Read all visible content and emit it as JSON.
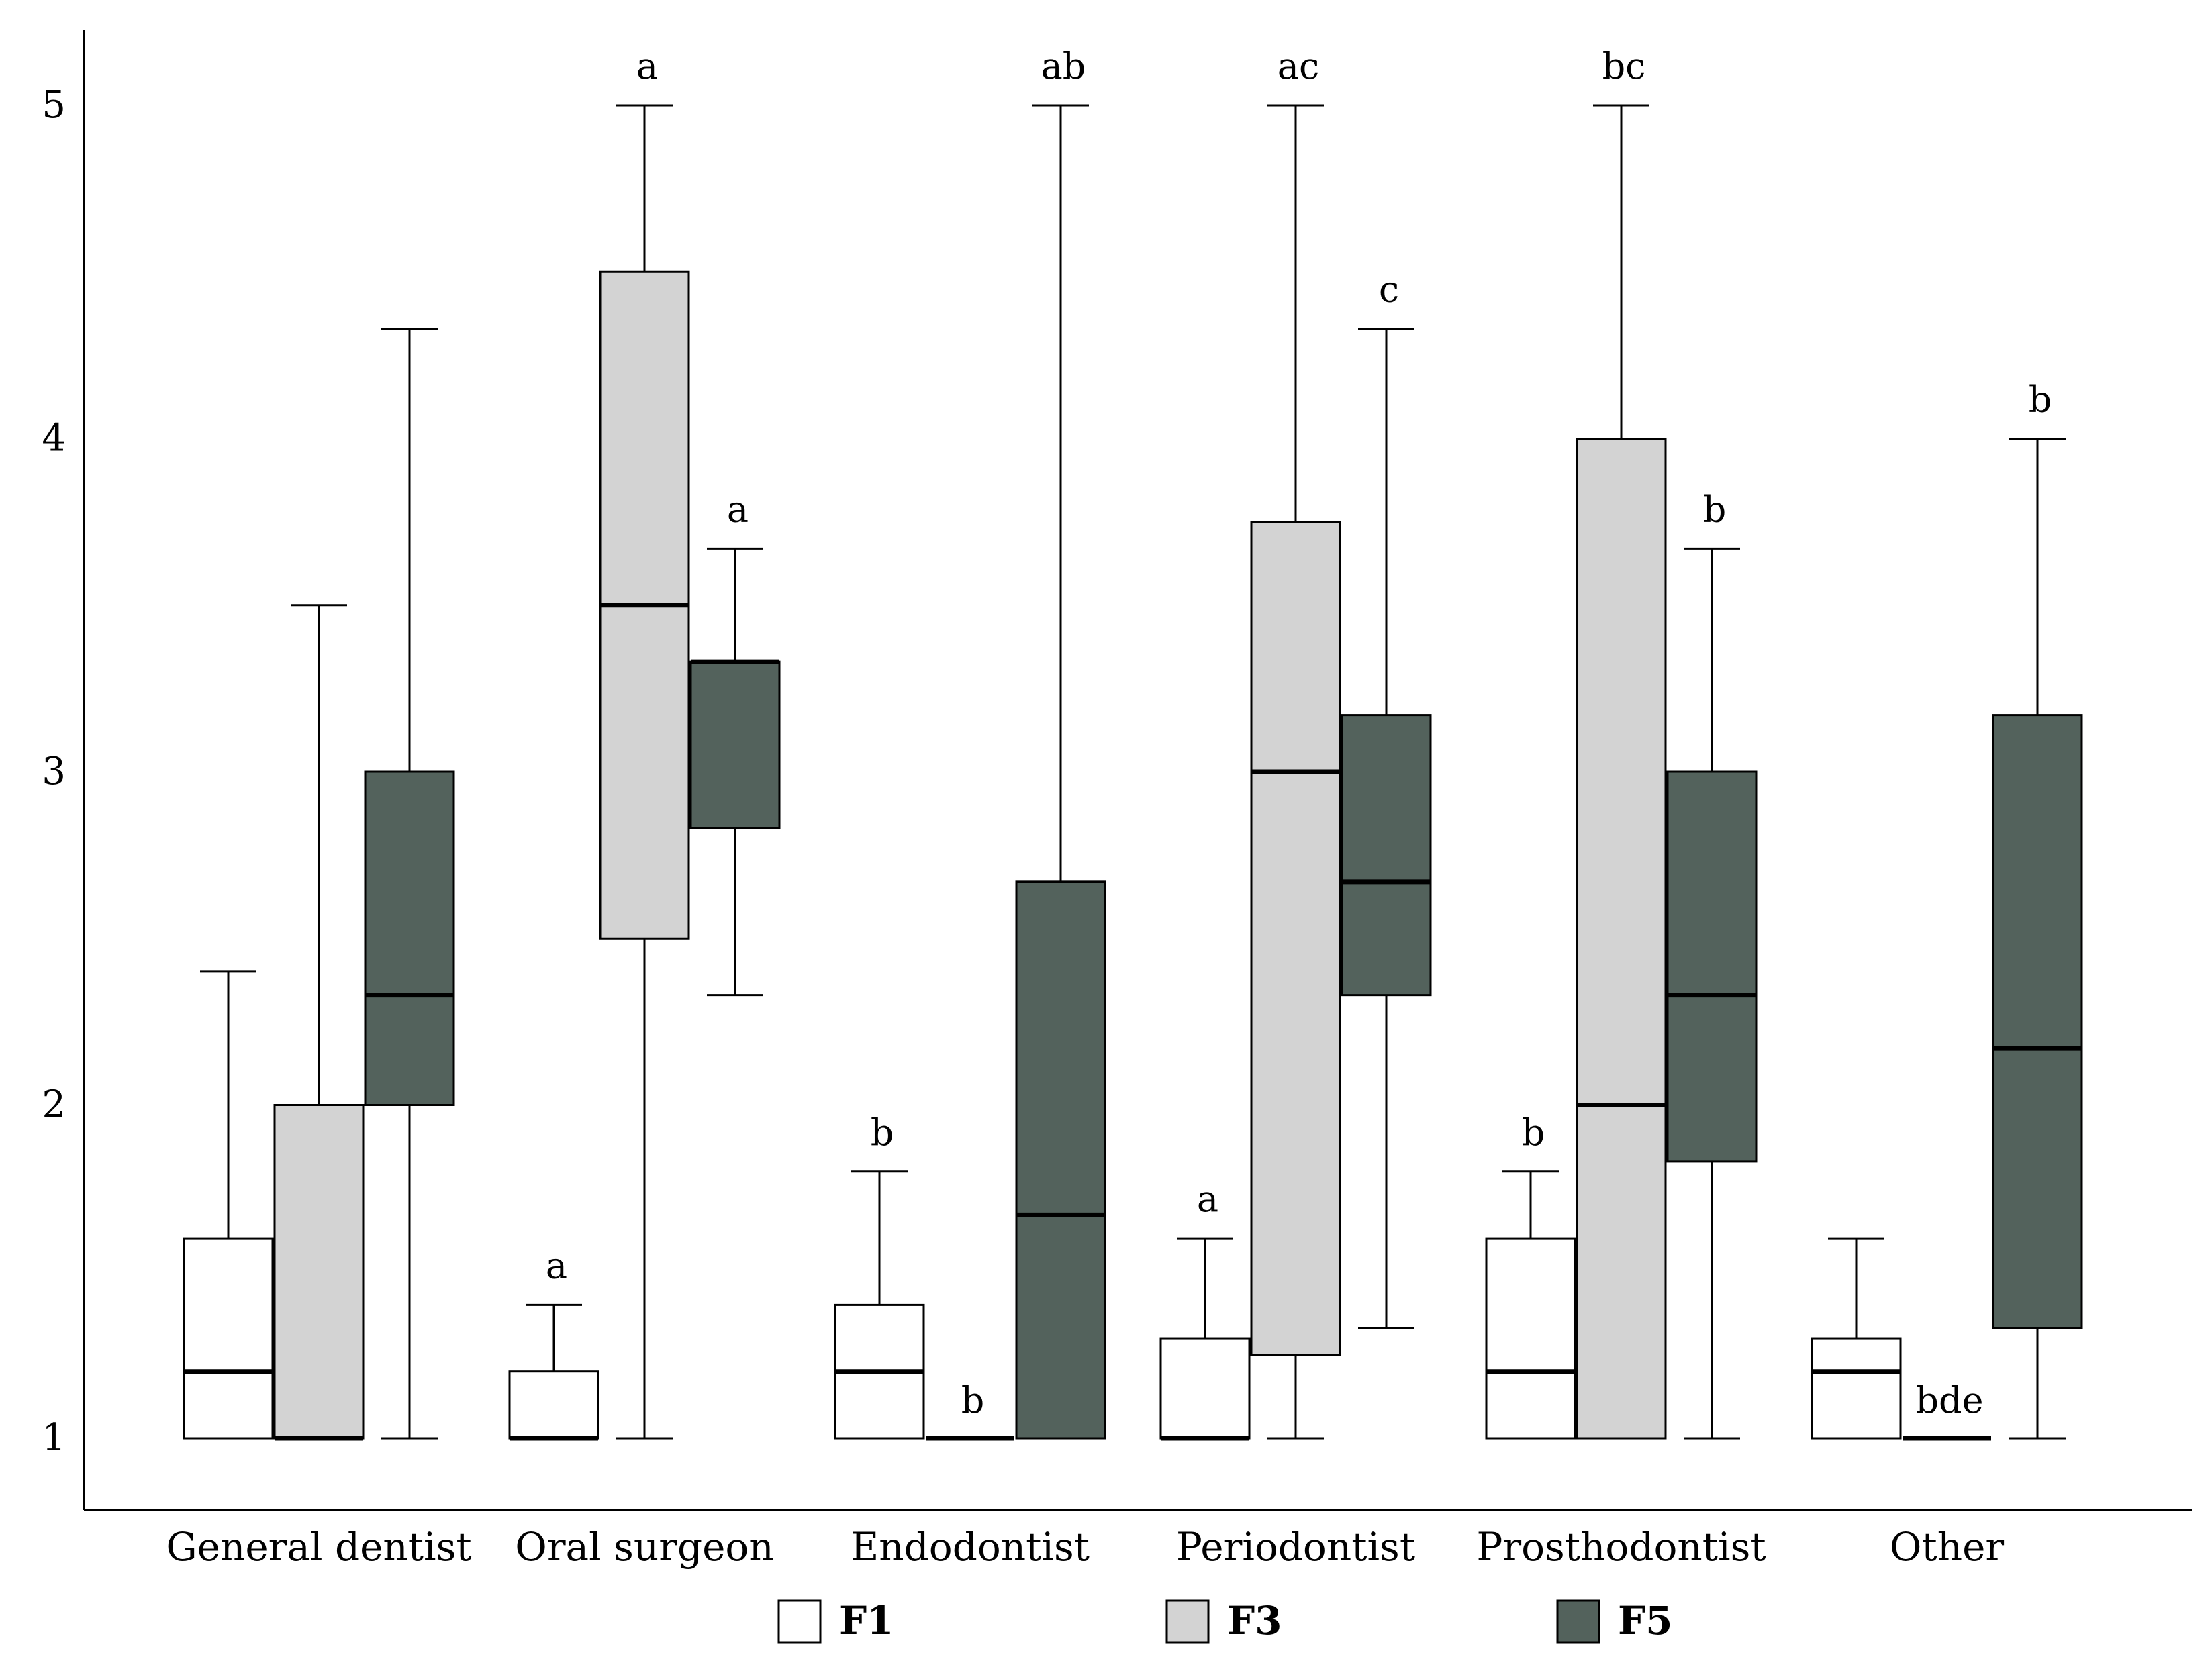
{
  "chart_data": {
    "type": "box",
    "title": "",
    "xlabel": "",
    "ylabel": "",
    "ylim": [
      1,
      5
    ],
    "y_ticks": [
      1,
      2,
      3,
      4,
      5
    ],
    "categories": [
      "General dentist",
      "Oral surgeon",
      "Endodontist",
      "Periodontist",
      "Prosthodontist",
      "Other"
    ],
    "series": [
      {
        "name": "F1",
        "color": "#ffffff",
        "boxes": [
          {
            "whisker_low": 1,
            "q1": 1,
            "median": 1.2,
            "q3": 1.6,
            "whisker_high": 2.4,
            "label": ""
          },
          {
            "whisker_low": 1,
            "q1": 1,
            "median": 1.0,
            "q3": 1.2,
            "whisker_high": 1.4,
            "label": "a"
          },
          {
            "whisker_low": 1,
            "q1": 1,
            "median": 1.2,
            "q3": 1.4,
            "whisker_high": 1.8,
            "label": "b"
          },
          {
            "whisker_low": 1,
            "q1": 1,
            "median": 1.0,
            "q3": 1.3,
            "whisker_high": 1.6,
            "label": "a"
          },
          {
            "whisker_low": 1,
            "q1": 1,
            "median": 1.2,
            "q3": 1.6,
            "whisker_high": 1.8,
            "label": "b"
          },
          {
            "whisker_low": 1,
            "q1": 1,
            "median": 1.2,
            "q3": 1.3,
            "whisker_high": 1.6,
            "label": ""
          }
        ]
      },
      {
        "name": "F3",
        "color": "#d3d3d3",
        "boxes": [
          {
            "whisker_low": 1,
            "q1": 1,
            "median": 1.0,
            "q3": 2.0,
            "whisker_high": 3.5,
            "label": ""
          },
          {
            "whisker_low": 1,
            "q1": 2.5,
            "median": 3.5,
            "q3": 4.5,
            "whisker_high": 5.0,
            "label": "a"
          },
          {
            "whisker_low": 1,
            "q1": 1,
            "median": 1.0,
            "q3": 1.0,
            "whisker_high": 1.0,
            "label": "b"
          },
          {
            "whisker_low": 1,
            "q1": 1.25,
            "median": 3.0,
            "q3": 3.75,
            "whisker_high": 5.0,
            "label": "ac"
          },
          {
            "whisker_low": 1,
            "q1": 1,
            "median": 2.0,
            "q3": 4.0,
            "whisker_high": 5.0,
            "label": "bc"
          },
          {
            "whisker_low": 1,
            "q1": 1,
            "median": 1.0,
            "q3": 1.0,
            "whisker_high": 1.0,
            "label": "bde"
          }
        ]
      },
      {
        "name": "F5",
        "color": "#53625c",
        "boxes": [
          {
            "whisker_low": 1,
            "q1": 2.0,
            "median": 2.33,
            "q3": 3.0,
            "whisker_high": 4.33,
            "label": ""
          },
          {
            "whisker_low": 2.33,
            "q1": 2.83,
            "median": 3.33,
            "q3": 3.33,
            "whisker_high": 3.67,
            "label": "a"
          },
          {
            "whisker_low": 1,
            "q1": 1,
            "median": 1.67,
            "q3": 2.67,
            "whisker_high": 5.0,
            "label": "ab"
          },
          {
            "whisker_low": 1.33,
            "q1": 2.33,
            "median": 2.67,
            "q3": 3.17,
            "whisker_high": 4.33,
            "label": "c"
          },
          {
            "whisker_low": 1,
            "q1": 1.83,
            "median": 2.33,
            "q3": 3.0,
            "whisker_high": 3.67,
            "label": "b"
          },
          {
            "whisker_low": 1,
            "q1": 1.33,
            "median": 2.17,
            "q3": 3.17,
            "whisker_high": 4.0,
            "label": "b"
          }
        ]
      }
    ],
    "legend": [
      "F1",
      "F3",
      "F5"
    ],
    "legend_position": "bottom"
  }
}
